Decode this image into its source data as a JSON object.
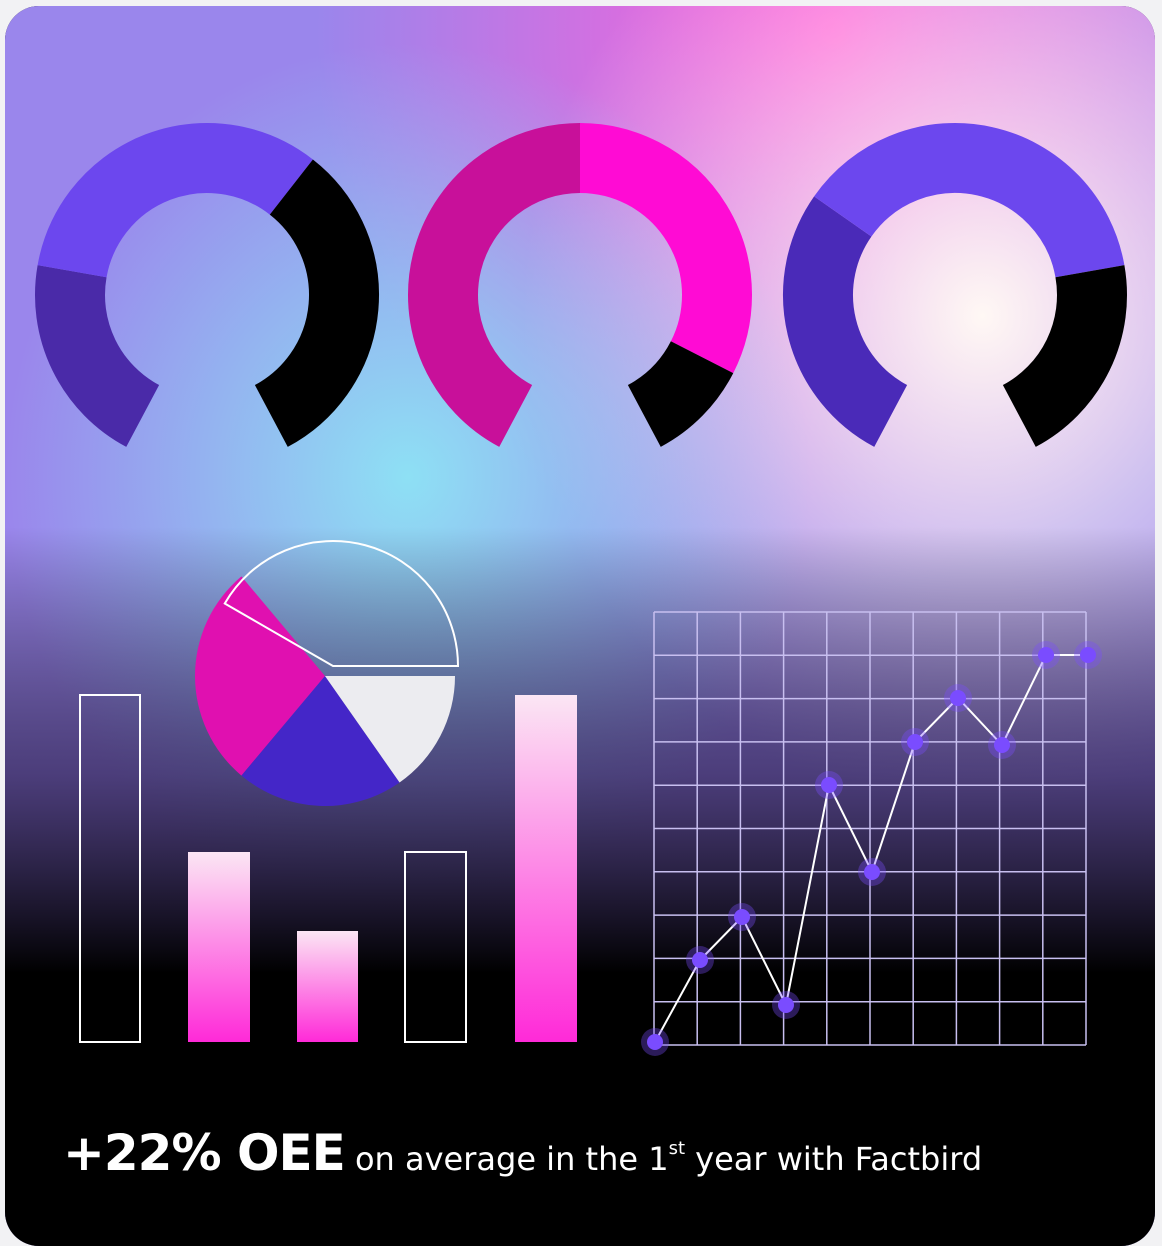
{
  "caption": {
    "highlight": "+22% OEE",
    "text_before": " on average in the 1",
    "superscript": "st",
    "text_after": " year with Factbird"
  }
}
